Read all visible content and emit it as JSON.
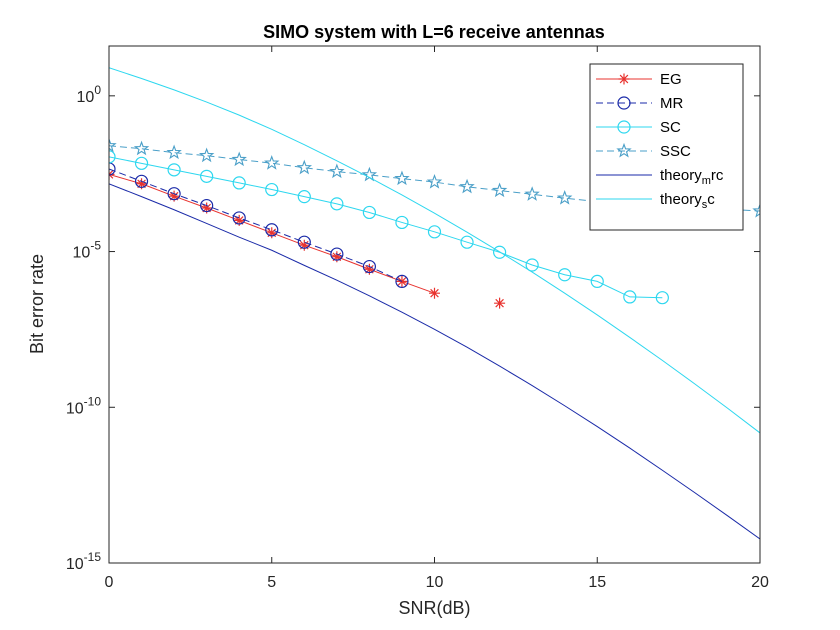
{
  "chart_data": {
    "type": "line",
    "title": "SIMO system with L=6 receive antennas",
    "xlabel": "SNR(dB)",
    "ylabel": "Bit error rate",
    "xlim": [
      0,
      20
    ],
    "ylim_log10": [
      -15,
      1.6
    ],
    "yscale": "log",
    "grid": false,
    "legend_position": "top-right",
    "x_ticks": [
      "0",
      "5",
      "10",
      "15",
      "20"
    ],
    "x_tick_values": [
      0,
      5,
      10,
      15,
      20
    ],
    "y_ticks": [
      {
        "base": "10",
        "exp": "0"
      },
      {
        "base": "10",
        "exp": "-5"
      },
      {
        "base": "10",
        "exp": "-10"
      },
      {
        "base": "10",
        "exp": "-15"
      }
    ],
    "y_tick_values_log10": [
      0,
      -5,
      -10,
      -15
    ],
    "series": [
      {
        "name": "EG",
        "color": "#e8332f",
        "marker": "asterisk",
        "dashed": false,
        "line_breaks_after_index": 10,
        "x": [
          0,
          1,
          2,
          3,
          4,
          5,
          6,
          7,
          8,
          9,
          10,
          12
        ],
        "y": [
          0.003,
          0.0015,
          0.0006,
          0.00025,
          0.0001,
          4e-05,
          1.6e-05,
          6.8e-06,
          2.7e-06,
          1.1e-06,
          4.6e-07,
          2.2e-07
        ]
      },
      {
        "name": "MR",
        "color": "#1a2aa8",
        "marker": "circle",
        "dashed": true,
        "x": [
          0,
          1,
          2,
          3,
          4,
          5,
          6,
          7,
          8,
          9
        ],
        "y": [
          0.0045,
          0.0018,
          0.00072,
          0.0003,
          0.00012,
          5e-05,
          2e-05,
          8.3e-06,
          3.3e-06,
          1.1e-06
        ]
      },
      {
        "name": "SC",
        "color": "#2dd7ef",
        "marker": "circle",
        "dashed": false,
        "x": [
          0,
          1,
          2,
          3,
          4,
          5,
          6,
          7,
          8,
          9,
          10,
          11,
          12,
          13,
          14,
          15,
          16,
          17
        ],
        "y": [
          0.011,
          0.0068,
          0.0042,
          0.0026,
          0.0016,
          0.00098,
          0.00058,
          0.00034,
          0.00018,
          8.6e-05,
          4.3e-05,
          2e-05,
          9.5e-06,
          3.7e-06,
          1.8e-06,
          1.1e-06,
          3.5e-07,
          3.3e-07
        ]
      },
      {
        "name": "SSC",
        "color": "#4a9fc8",
        "marker": "star",
        "dashed": true,
        "x": [
          0,
          1,
          2,
          3,
          4,
          5,
          6,
          7,
          8,
          9,
          10,
          11,
          12,
          13,
          14,
          15,
          16,
          17,
          18,
          19,
          20
        ],
        "y": [
          0.025,
          0.02,
          0.015,
          0.012,
          0.009,
          0.0069,
          0.0049,
          0.0037,
          0.0029,
          0.0022,
          0.0017,
          0.0012,
          0.00091,
          0.00069,
          0.00052,
          0.0004,
          0.00035,
          0.00031,
          0.00027,
          0.00023,
          0.0002
        ]
      },
      {
        "name": "theory_mrc",
        "legend_base": "theory",
        "legend_sub": "m",
        "legend_rest": "rc",
        "color": "#1a2aa8",
        "marker": "none",
        "dashed": false,
        "x": [
          0,
          1,
          2,
          3,
          4,
          5,
          6,
          7,
          8,
          9,
          10,
          11,
          12,
          13,
          14,
          15,
          16,
          17,
          18,
          19,
          20
        ],
        "y": [
          0.0015,
          0.00058,
          0.00022,
          8e-05,
          2.9e-05,
          1.1e-05,
          3.6e-06,
          1.2e-06,
          3.8e-07,
          1.13e-07,
          3.2e-08,
          8.5e-09,
          2.1e-09,
          5e-10,
          1.12e-10,
          2.4e-11,
          4.9e-12,
          9.5e-13,
          1.8e-13,
          3.3e-14,
          5.9e-15
        ]
      },
      {
        "name": "theory_sc",
        "legend_base": "theory",
        "legend_sub": "s",
        "legend_rest": "c",
        "color": "#2dd7ef",
        "marker": "none",
        "dashed": false,
        "x": [
          0,
          1,
          2,
          3,
          4,
          5,
          6,
          7,
          8,
          9,
          10,
          11,
          12,
          13,
          14,
          15,
          16,
          17,
          18,
          19,
          20
        ],
        "y": [
          8,
          3.6,
          1.55,
          0.63,
          0.24,
          0.084,
          0.027,
          0.0082,
          0.0024,
          0.00066,
          0.00017,
          4.2e-05,
          9.8e-06,
          2.2e-06,
          4.6e-07,
          9.2e-08,
          1.75e-08,
          3.2e-09,
          5.6e-10,
          9.4e-11,
          1.5e-11
        ]
      }
    ]
  }
}
